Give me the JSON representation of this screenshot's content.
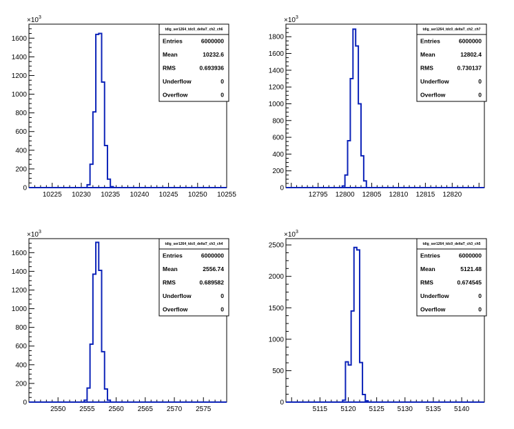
{
  "colors": {
    "hist_line": "#0b22b8",
    "axis": "#000000",
    "background": "#ffffff"
  },
  "chart_data": [
    {
      "type": "histogram",
      "stats": {
        "title": "tdig_ser1264_tdc0_deltaT_ch2_ch6",
        "rows": [
          {
            "label": "Entries",
            "value": "6000000"
          },
          {
            "label": "Mean",
            "value": "10232.6"
          },
          {
            "label": "RMS",
            "value": "0.693936"
          },
          {
            "label": "Underflow",
            "value": "0"
          },
          {
            "label": "Overflow",
            "value": "0"
          }
        ]
      },
      "x_range": [
        10221,
        10255
      ],
      "y_range": [
        0,
        1750
      ],
      "y_scale_label": "×10",
      "y_scale_exp": "3",
      "x_ticks": [
        10225,
        10230,
        10235,
        10240,
        10245,
        10250,
        10255
      ],
      "y_ticks": [
        0,
        200,
        400,
        600,
        800,
        1000,
        1200,
        1400,
        1600
      ],
      "bins": [
        [
          10231,
          10231.5,
          30
        ],
        [
          10231.5,
          10232,
          250
        ],
        [
          10232,
          10232.5,
          810
        ],
        [
          10232.5,
          10233,
          1640
        ],
        [
          10233,
          10233.5,
          1650
        ],
        [
          10233.5,
          10234,
          1130
        ],
        [
          10234,
          10234.5,
          450
        ],
        [
          10234.5,
          10235,
          90
        ],
        [
          10235,
          10235.5,
          10
        ]
      ]
    },
    {
      "type": "histogram",
      "stats": {
        "title": "tdig_ser1264_tdc0_deltaT_ch2_ch7",
        "rows": [
          {
            "label": "Entries",
            "value": "6000000"
          },
          {
            "label": "Mean",
            "value": "12802.4"
          },
          {
            "label": "RMS",
            "value": "0.730137"
          },
          {
            "label": "Underflow",
            "value": "0"
          },
          {
            "label": "Overflow",
            "value": "0"
          }
        ]
      },
      "x_range": [
        12789,
        12826
      ],
      "y_range": [
        0,
        1950
      ],
      "y_scale_label": "×10",
      "y_scale_exp": "3",
      "x_ticks": [
        12795,
        12800,
        12805,
        12810,
        12815,
        12820
      ],
      "y_ticks": [
        0,
        200,
        400,
        600,
        800,
        1000,
        1200,
        1400,
        1600,
        1800
      ],
      "bins": [
        [
          12799.5,
          12800,
          20
        ],
        [
          12800,
          12800.5,
          150
        ],
        [
          12800.5,
          12801,
          560
        ],
        [
          12801,
          12801.5,
          1300
        ],
        [
          12801.5,
          12802,
          1890
        ],
        [
          12802,
          12802.5,
          1690
        ],
        [
          12802.5,
          12803,
          1000
        ],
        [
          12803,
          12803.5,
          380
        ],
        [
          12803.5,
          12804,
          80
        ]
      ]
    },
    {
      "type": "histogram",
      "stats": {
        "title": "tdig_ser1264_tdc0_deltaT_ch3_ch4",
        "rows": [
          {
            "label": "Entries",
            "value": "6000000"
          },
          {
            "label": "Mean",
            "value": "2556.74"
          },
          {
            "label": "RMS",
            "value": "0.689582"
          },
          {
            "label": "Underflow",
            "value": "0"
          },
          {
            "label": "Overflow",
            "value": "0"
          }
        ]
      },
      "x_range": [
        2545,
        2579
      ],
      "y_range": [
        0,
        1750
      ],
      "y_scale_label": "×10",
      "y_scale_exp": "3",
      "x_ticks": [
        2550,
        2555,
        2560,
        2565,
        2570,
        2575
      ],
      "y_ticks": [
        0,
        200,
        400,
        600,
        800,
        1000,
        1200,
        1400,
        1600
      ],
      "bins": [
        [
          2554.5,
          2555,
          20
        ],
        [
          2555,
          2555.5,
          150
        ],
        [
          2555.5,
          2556,
          620
        ],
        [
          2556,
          2556.5,
          1370
        ],
        [
          2556.5,
          2557,
          1710
        ],
        [
          2557,
          2557.5,
          1410
        ],
        [
          2557.5,
          2558,
          540
        ],
        [
          2558,
          2558.5,
          140
        ],
        [
          2558.5,
          2559,
          20
        ]
      ]
    },
    {
      "type": "histogram",
      "stats": {
        "title": "tdig_ser1264_tdc0_deltaT_ch3_ch5",
        "rows": [
          {
            "label": "Entries",
            "value": "6000000"
          },
          {
            "label": "Mean",
            "value": "5121.48"
          },
          {
            "label": "RMS",
            "value": "0.674545"
          },
          {
            "label": "Underflow",
            "value": "0"
          },
          {
            "label": "Overflow",
            "value": "0"
          }
        ]
      },
      "x_range": [
        5109,
        5144
      ],
      "y_range": [
        0,
        2600
      ],
      "y_scale_label": "×10",
      "y_scale_exp": "3",
      "x_ticks": [
        5115,
        5120,
        5125,
        5130,
        5135,
        5140
      ],
      "y_ticks": [
        0,
        500,
        1000,
        1500,
        2000,
        2500
      ],
      "bins": [
        [
          5119,
          5119.5,
          30
        ],
        [
          5119.5,
          5120,
          640
        ],
        [
          5120,
          5120.5,
          590
        ],
        [
          5120.5,
          5121,
          1450
        ],
        [
          5121,
          5121.5,
          2460
        ],
        [
          5121.5,
          5122,
          2420
        ],
        [
          5122,
          5122.5,
          630
        ],
        [
          5122.5,
          5123,
          120
        ],
        [
          5123,
          5123.5,
          20
        ]
      ]
    }
  ]
}
